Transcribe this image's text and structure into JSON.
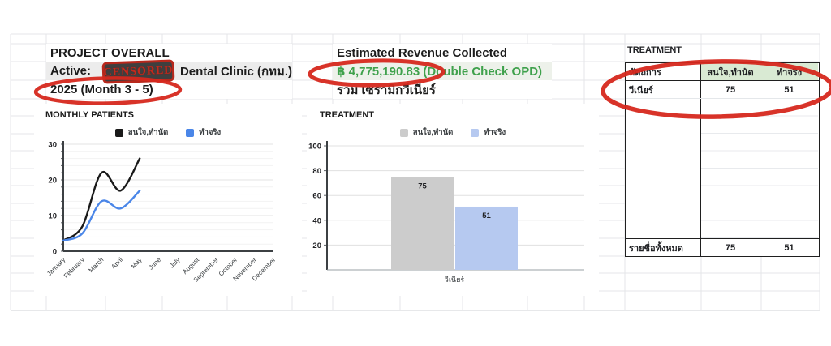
{
  "header": {
    "project_title": "PROJECT OVERALL",
    "active_prefix": "Active:",
    "censored_label": "CENSORED",
    "active_suffix": "Dental Clinic (กทม.)",
    "period": "2025 (Month 3 - 5)",
    "revenue_title": "Estimated Revenue Collected",
    "revenue_value": "฿ 4,775,190.83 (Double Check OPD)",
    "revenue_note": "รวม เซรามิกวีเนียร์"
  },
  "treatment_table": {
    "title": "TREATMENT",
    "columns": [
      "หัตถการ",
      "สนใจ,ทำนัด",
      "ทำจริง"
    ],
    "rows": [
      {
        "name": "วีเนียร์",
        "interested": "75",
        "actual": "51"
      }
    ],
    "total_row": {
      "name": "รายชื่อทั้งหมด",
      "interested": "75",
      "actual": "51"
    }
  },
  "colors": {
    "annotation_red": "#d6281e",
    "revenue_green": "#3fa14c",
    "table_header_green": "#d9ead3",
    "merged_row_gray": "#ececec",
    "bar_gray": "#cccccc",
    "bar_blue": "#b6c9f0",
    "line_black": "#1a1a1a",
    "line_blue": "#4a86e8"
  },
  "chart_data": [
    {
      "type": "line",
      "title": "MONTHLY PATIENTS",
      "categories": [
        "January",
        "February",
        "March",
        "April",
        "May",
        "June",
        "July",
        "August",
        "September",
        "October",
        "November",
        "December"
      ],
      "series": [
        {
          "name": "สนใจ,ทำนัด",
          "color": "#1a1a1a",
          "values": [
            3,
            7,
            22,
            17,
            26
          ]
        },
        {
          "name": "ทำจริง",
          "color": "#4a86e8",
          "values": [
            3,
            5,
            14,
            12,
            17
          ]
        }
      ],
      "xlabel": "",
      "ylabel": "",
      "ylim": [
        0,
        30
      ],
      "yticks": [
        0,
        10,
        20,
        30
      ],
      "minor_grid_step": 2,
      "grid": true,
      "legend_position": "top"
    },
    {
      "type": "bar",
      "title": "TREATMENT",
      "categories": [
        "วีเนียร์"
      ],
      "series": [
        {
          "name": "สนใจ,ทำนัด",
          "color": "#cccccc",
          "values": [
            75
          ]
        },
        {
          "name": "ทำจริง",
          "color": "#b6c9f0",
          "values": [
            51
          ]
        }
      ],
      "xlabel": "",
      "ylabel": "",
      "ylim": [
        0,
        100
      ],
      "yticks": [
        20,
        40,
        60,
        80,
        100
      ],
      "grid": true,
      "bar_labels": true,
      "legend_position": "top"
    }
  ]
}
